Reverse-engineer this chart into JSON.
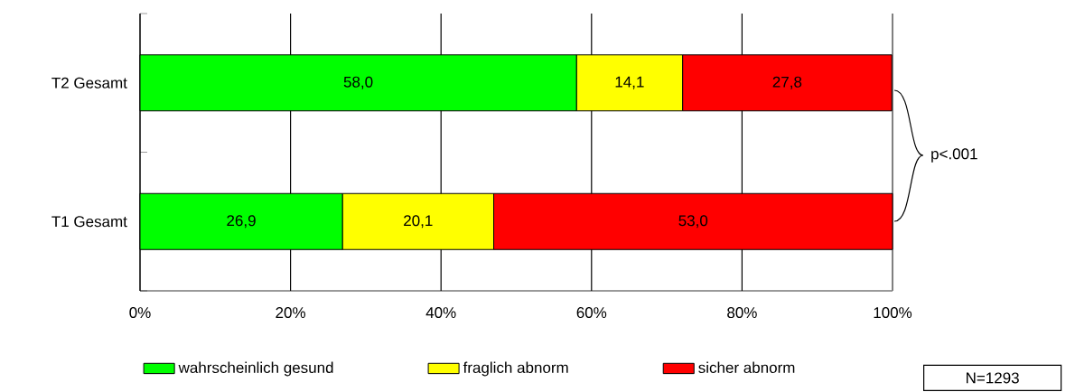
{
  "chart_data": {
    "type": "bar",
    "orientation": "horizontal",
    "stacked": true,
    "categories": [
      "T2 Gesamt",
      "T1 Gesamt"
    ],
    "series": [
      {
        "name": "wahrscheinlich gesund",
        "color": "#00ff00",
        "values": [
          58.0,
          26.9
        ],
        "value_labels": [
          "58,0",
          "26,9"
        ]
      },
      {
        "name": "fraglich abnorm",
        "color": "#ffff00",
        "values": [
          14.1,
          20.1
        ],
        "value_labels": [
          "14,1",
          "20,1"
        ]
      },
      {
        "name": "sicher abnorm",
        "color": "#ff0000",
        "values": [
          27.8,
          53.0
        ],
        "value_labels": [
          "27,8",
          "53,0"
        ]
      }
    ],
    "xlim": [
      0,
      100
    ],
    "xticks": [
      {
        "value": 0,
        "label": "0%"
      },
      {
        "value": 20,
        "label": "20%"
      },
      {
        "value": 40,
        "label": "40%"
      },
      {
        "value": 60,
        "label": "60%"
      },
      {
        "value": 80,
        "label": "80%"
      },
      {
        "value": 100,
        "label": "100%"
      }
    ],
    "grid": "x",
    "legend": "bottom",
    "annotations": [
      "p<.001",
      "N=1293"
    ]
  }
}
